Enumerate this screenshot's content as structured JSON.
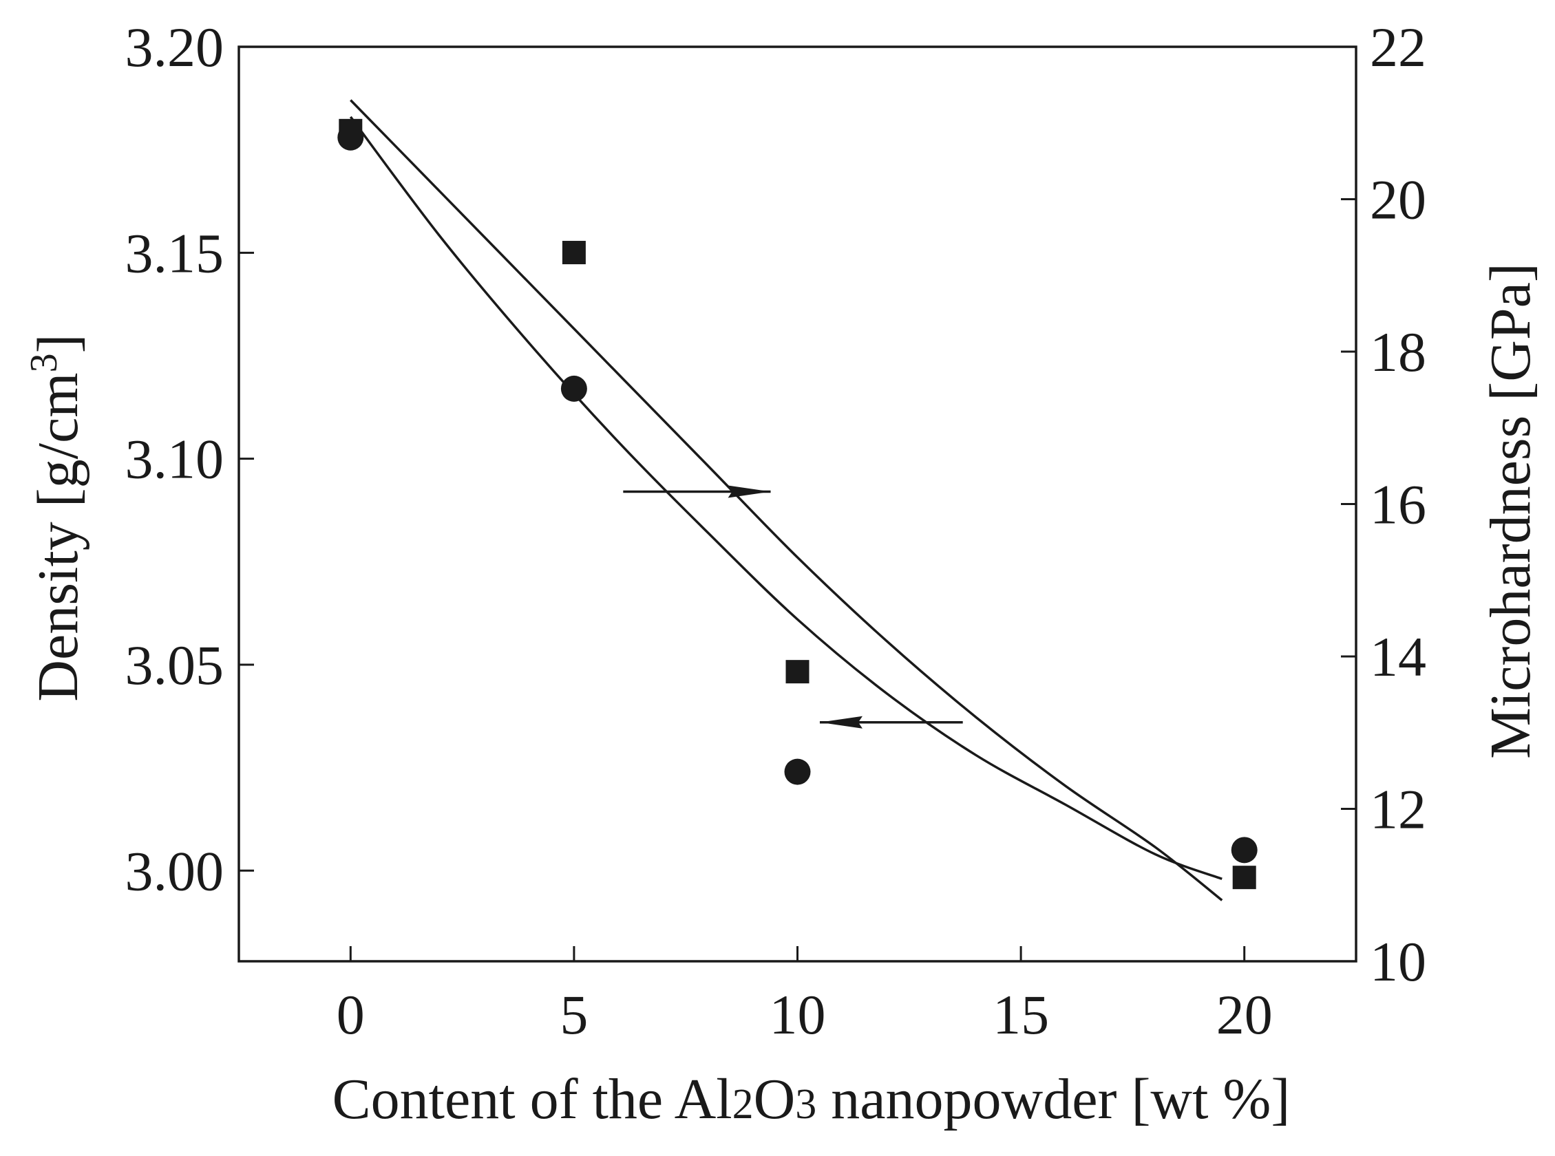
{
  "chart_data": {
    "type": "scatter",
    "x": {
      "label_parts": [
        "Content of the Al",
        "2",
        "O",
        "3",
        " nanopowder [wt %]"
      ],
      "ticks": [
        0,
        5,
        10,
        15,
        20
      ],
      "tick_labels": [
        "0",
        "5",
        "10",
        "15",
        "20"
      ],
      "range": [
        -2.5,
        22.5
      ]
    },
    "y_left": {
      "label_parts": [
        "Density [g/cm",
        "3",
        "]"
      ],
      "ticks": [
        3.0,
        3.05,
        3.1,
        3.15,
        3.2
      ],
      "tick_labels": [
        "3.00",
        "3.05",
        "3.10",
        "3.15",
        "3.20"
      ],
      "range": [
        2.978,
        3.2
      ]
    },
    "y_right": {
      "label": "Microhardness [GPa]",
      "ticks": [
        10,
        12,
        14,
        16,
        18,
        20,
        22
      ],
      "tick_labels": [
        "10",
        "12",
        "14",
        "16",
        "18",
        "20",
        "22"
      ],
      "range": [
        10,
        22
      ]
    },
    "series": [
      {
        "marker": "circle",
        "axis": "left",
        "x": [
          0,
          5,
          10,
          20
        ],
        "y": [
          3.178,
          3.117,
          3.024,
          3.005
        ],
        "fit_x": [
          0,
          2,
          4,
          6,
          8,
          10,
          12,
          14,
          16,
          18,
          19.5
        ],
        "fit_y": [
          3.183,
          3.154,
          3.128,
          3.104,
          3.082,
          3.061,
          3.043,
          3.028,
          3.016,
          3.004,
          2.998
        ]
      },
      {
        "marker": "square",
        "axis": "right",
        "x": [
          0,
          5,
          10,
          20
        ],
        "y": [
          20.9,
          19.3,
          13.8,
          11.1
        ],
        "fit_x": [
          0,
          2,
          4,
          6,
          8,
          10,
          12,
          14,
          16,
          18,
          19.5
        ],
        "fit_y": [
          21.3,
          20.1,
          18.9,
          17.7,
          16.5,
          15.3,
          14.2,
          13.2,
          12.3,
          11.5,
          10.8
        ]
      }
    ],
    "arrows": [
      {
        "from_x": 6.1,
        "to_x": 9.4,
        "y_left": 3.092,
        "direction": "right"
      },
      {
        "from_x": 13.7,
        "to_x": 10.5,
        "y_left": 3.036,
        "direction": "left"
      }
    ],
    "colors": {
      "ink": "#1a1a1a",
      "background": "#ffffff"
    }
  }
}
